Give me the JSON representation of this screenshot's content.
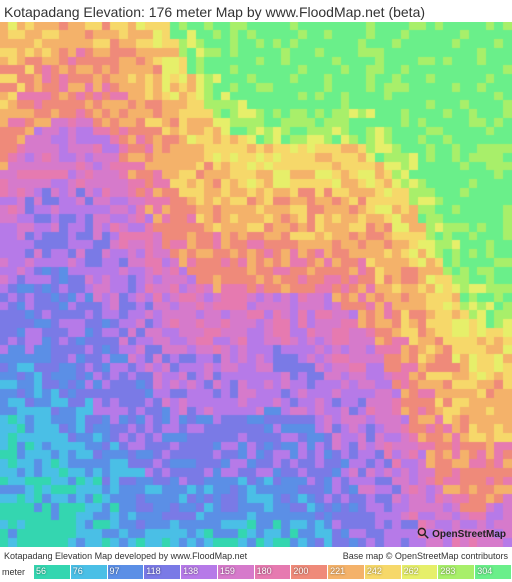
{
  "title": "Kotapadang Elevation: 176 meter Map by www.FloodMap.net (beta)",
  "credits_left": "Kotapadang Elevation Map developed by www.FloodMap.net",
  "credits_right": "Base map © OpenStreetMap contributors",
  "osm_label": "OpenStreetMap",
  "legend": {
    "unit_label": "meter",
    "ticks": [
      "56",
      "76",
      "97",
      "118",
      "138",
      "159",
      "180",
      "200",
      "221",
      "242",
      "262",
      "283",
      "304"
    ],
    "colors": [
      "#34d6b0",
      "#4abfe6",
      "#5b8fe6",
      "#7a7ae6",
      "#b67ae8",
      "#d67acb",
      "#e67ab0",
      "#ef8a7a",
      "#f4b26a",
      "#f6d86a",
      "#e6ef6a",
      "#a8ef6a",
      "#6aef8a"
    ]
  },
  "map": {
    "type": "heatmap",
    "grid_size": 60,
    "background_color": "#4abfe6",
    "colors": [
      "#34d6b0",
      "#4abfe6",
      "#5b8fe6",
      "#7a7ae6",
      "#b67ae8",
      "#d67acb",
      "#e67ab0",
      "#ef8a7a",
      "#f4b26a",
      "#f6d86a",
      "#e6ef6a",
      "#a8ef6a",
      "#6aef8a"
    ],
    "elevation_bands": [
      {
        "y_start": 0.0,
        "y_end": 0.08,
        "base_idx": 11,
        "amp": 1
      },
      {
        "y_start": 0.08,
        "y_end": 0.18,
        "base_idx": 9,
        "amp": 1
      },
      {
        "y_start": 0.18,
        "y_end": 0.3,
        "base_idx": 8,
        "amp": 1
      },
      {
        "y_start": 0.3,
        "y_end": 0.42,
        "base_idx": 7,
        "amp": 1
      },
      {
        "y_start": 0.42,
        "y_end": 0.55,
        "base_idx": 5,
        "amp": 1
      },
      {
        "y_start": 0.55,
        "y_end": 0.7,
        "base_idx": 4,
        "amp": 1
      },
      {
        "y_start": 0.7,
        "y_end": 0.85,
        "base_idx": 3,
        "amp": 1
      },
      {
        "y_start": 0.85,
        "y_end": 0.95,
        "base_idx": 2,
        "amp": 1
      },
      {
        "y_start": 0.95,
        "y_end": 1.0,
        "base_idx": 1,
        "amp": 1
      }
    ],
    "bottom_left_patch": {
      "x_end": 0.15,
      "y_start": 0.9,
      "idx": 0
    }
  }
}
